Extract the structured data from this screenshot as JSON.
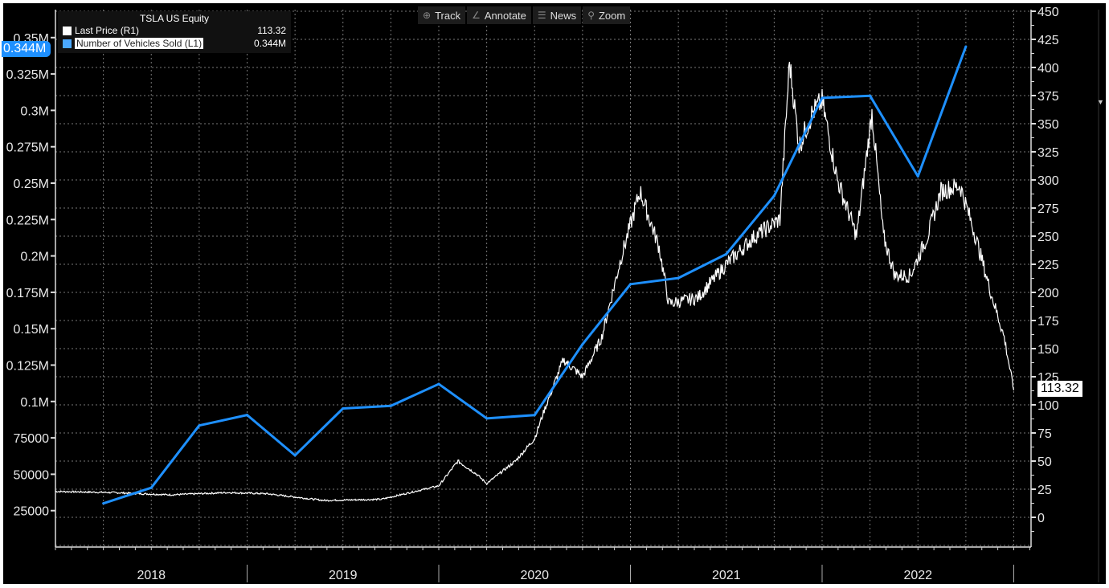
{
  "toolbar": {
    "items": [
      {
        "label": "Track",
        "icon": "crosshair-icon"
      },
      {
        "label": "Annotate",
        "icon": "pencil-icon"
      },
      {
        "label": "News",
        "icon": "news-icon"
      },
      {
        "label": "Zoom",
        "icon": "magnifier-icon"
      }
    ]
  },
  "colors": {
    "price": "#ffffff",
    "vehicles": "#1e90ff",
    "background": "#000000"
  },
  "chart_data": {
    "type": "line",
    "title": "TSLA US Equity",
    "legend": [
      {
        "label": "Last Price  (R1)",
        "value": "113.32"
      },
      {
        "label": "Number of Vehicles Sold  (L1)",
        "value": "0.344M"
      }
    ],
    "legend_position": "top-left",
    "left_tag": "0.344M",
    "right_tag": "113.32",
    "x_ticks": [
      "2018",
      "2019",
      "2020",
      "2021",
      "2022"
    ],
    "xlim": [
      2018,
      2023.1
    ],
    "left_axis": {
      "ylim": [
        0,
        350000
      ],
      "ticks": [
        "0.35M",
        "0.325M",
        "0.3M",
        "0.275M",
        "0.25M",
        "0.225M",
        "0.2M",
        "0.175M",
        "0.15M",
        "0.125M",
        "0.1M",
        "75000",
        "50000",
        "25000"
      ]
    },
    "right_axis": {
      "ylim": [
        -25,
        450
      ],
      "ticks": [
        "450",
        "425",
        "400",
        "375",
        "350",
        "325",
        "300",
        "275",
        "250",
        "225",
        "200",
        "175",
        "150",
        "125",
        "100",
        "75",
        "50",
        "25",
        "0"
      ]
    },
    "grid": true,
    "series": [
      {
        "name": "Number of Vehicles Sold",
        "axis": "left",
        "x": [
          2018.25,
          2018.5,
          2018.75,
          2019.0,
          2019.25,
          2019.5,
          2019.75,
          2020.0,
          2020.25,
          2020.5,
          2020.75,
          2021.0,
          2021.25,
          2021.5,
          2021.75,
          2022.0,
          2022.25,
          2022.5,
          2022.75
        ],
        "values": [
          29980,
          40740,
          83500,
          90700,
          63000,
          95200,
          97000,
          112000,
          88400,
          90650,
          139300,
          180570,
          184800,
          201250,
          241300,
          308600,
          310048,
          254695,
          343830
        ]
      },
      {
        "name": "Last Price",
        "axis": "right",
        "x": [
          2018.0,
          2018.3,
          2018.6,
          2018.9,
          2019.1,
          2019.4,
          2019.7,
          2019.85,
          2020.0,
          2020.1,
          2020.2,
          2020.25,
          2020.4,
          2020.5,
          2020.55,
          2020.65,
          2020.75,
          2020.85,
          2020.95,
          2021.05,
          2021.15,
          2021.2,
          2021.35,
          2021.5,
          2021.65,
          2021.78,
          2021.83,
          2021.88,
          2021.95,
          2022.0,
          2022.08,
          2022.18,
          2022.26,
          2022.32,
          2022.38,
          2022.46,
          2022.55,
          2022.62,
          2022.72,
          2022.8,
          2022.88,
          2022.95,
          2023.0
        ],
        "values": [
          23,
          22,
          20,
          22,
          21,
          15,
          16,
          22,
          28,
          50,
          38,
          30,
          50,
          70,
          95,
          140,
          125,
          160,
          230,
          290,
          240,
          190,
          195,
          225,
          250,
          265,
          405,
          330,
          360,
          370,
          300,
          250,
          360,
          250,
          215,
          215,
          250,
          290,
          295,
          250,
          200,
          160,
          113
        ]
      }
    ]
  }
}
